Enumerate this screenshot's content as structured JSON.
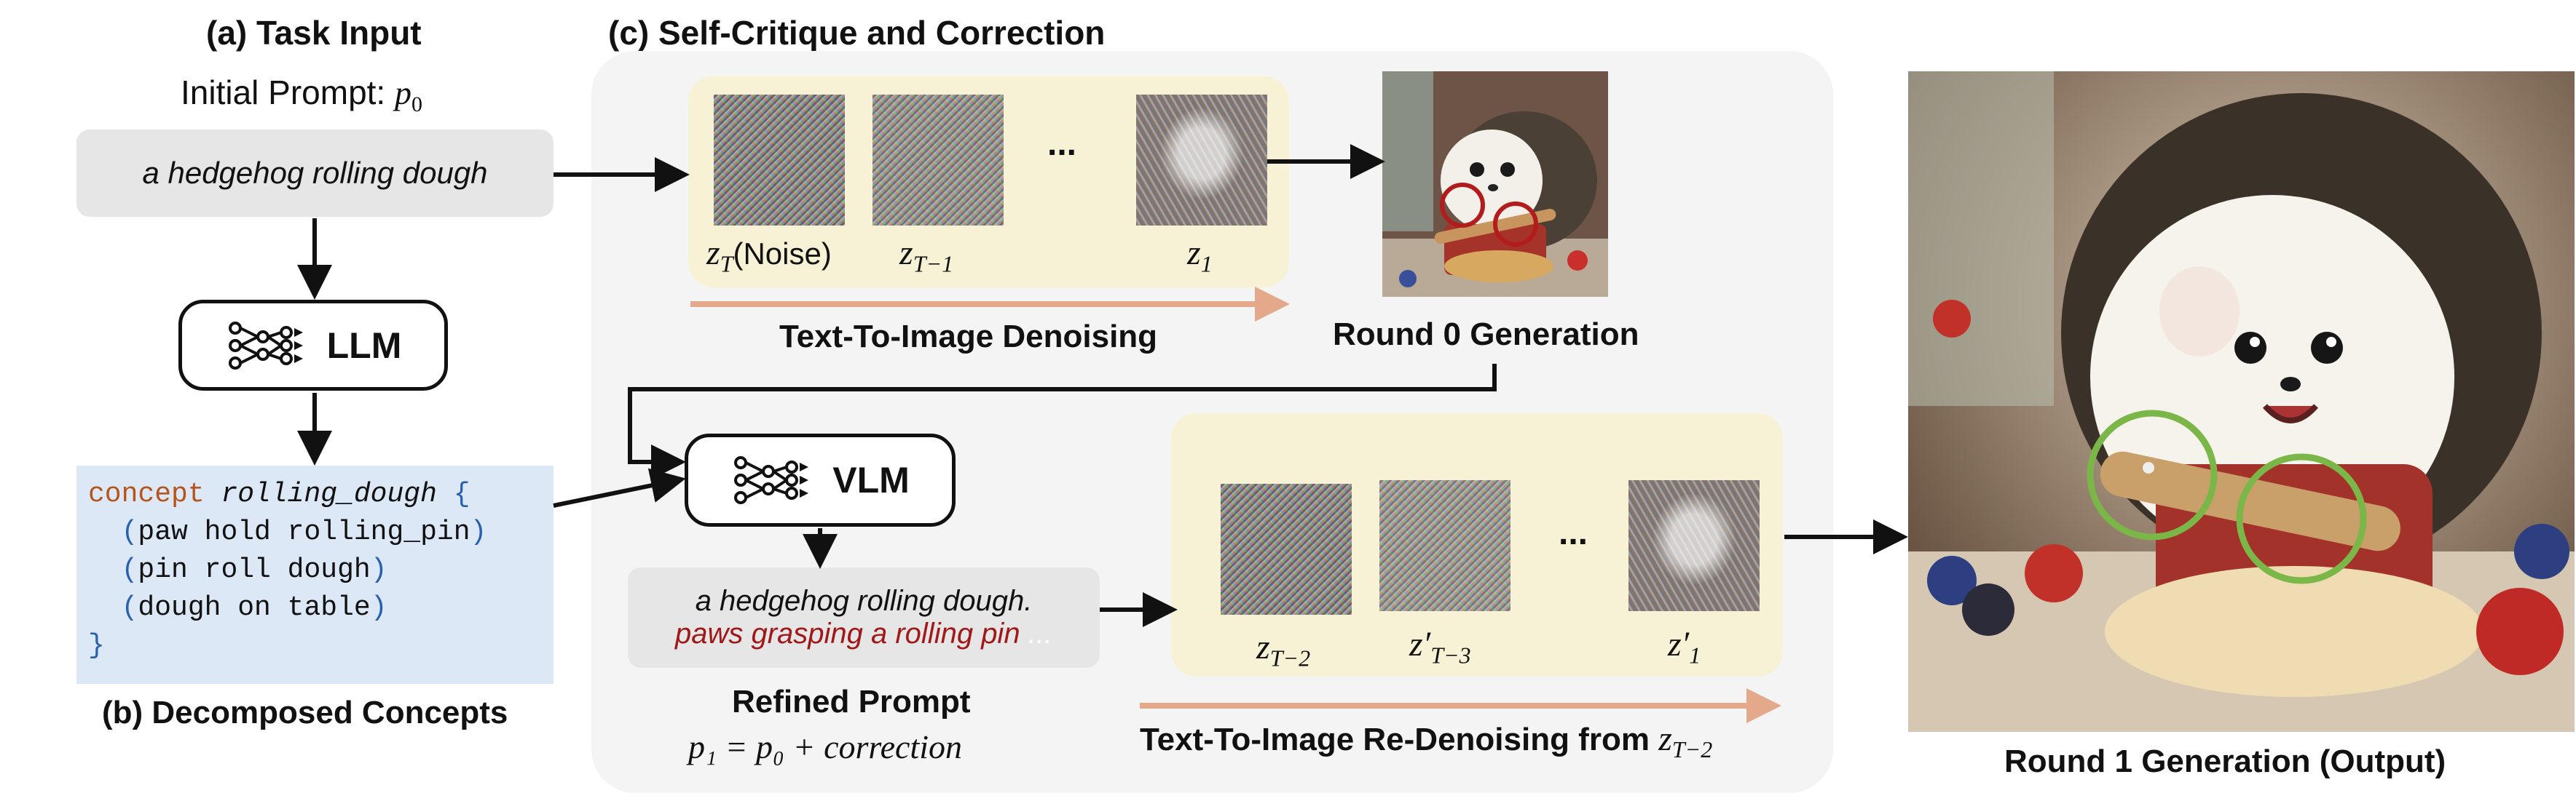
{
  "panel_a": {
    "title": "(a) Task Input",
    "prompt_label": "Initial Prompt: ",
    "prompt_var": "p",
    "prompt_sub": "0",
    "prompt_text": "a hedgehog rolling dough"
  },
  "llm": {
    "label": "LLM"
  },
  "panel_b": {
    "keyword": "concept",
    "concept_name": "rolling_dough",
    "open_brace": "{",
    "close_brace": "}",
    "lines": [
      "(paw hold rolling_pin)",
      "(pin roll dough)",
      "(dough on table)"
    ],
    "caption": "(b) Decomposed Concepts"
  },
  "panel_c": {
    "title": "(c) Self-Critique and Correction",
    "round0_labels": {
      "zT": "z",
      "zT_sub": "T",
      "zT_suffix": "(Noise)",
      "zT1": "z",
      "zT1_sub": "T−1",
      "z1": "z",
      "z1_sub": "1"
    },
    "ellipsis": "...",
    "denoise_caption": "Text-To-Image Denoising",
    "round0_caption": "Round 0 Generation",
    "vlm_label": "VLM",
    "refined_line1": "a hedgehog rolling dough.",
    "refined_line2_red": "paws grasping a rolling pin",
    "refined_line2_grey": " ...",
    "refined_title": "Refined Prompt",
    "refined_formula": "p₁ = p₀ + correction",
    "round1_labels": {
      "zT2": "z",
      "zT2_sub": "T−2",
      "zpT3": "z′",
      "zpT3_sub": "T−3",
      "zp1": "z′",
      "zp1_sub": "1"
    },
    "redenoise_caption": "Text-To-Image Re-Denoising from ",
    "redenoise_var": "z",
    "redenoise_sub": "T−2"
  },
  "output": {
    "caption": "Round 1 Generation (Output)"
  },
  "colors": {
    "arrow": "#111111",
    "progress_arrow": "#e3a98a",
    "red_text": "#a01818",
    "red_circle": "#b21c1c",
    "green_circle": "#7ab648",
    "code_bg": "#dde8f6",
    "yellow_box": "#f7f2d6"
  }
}
